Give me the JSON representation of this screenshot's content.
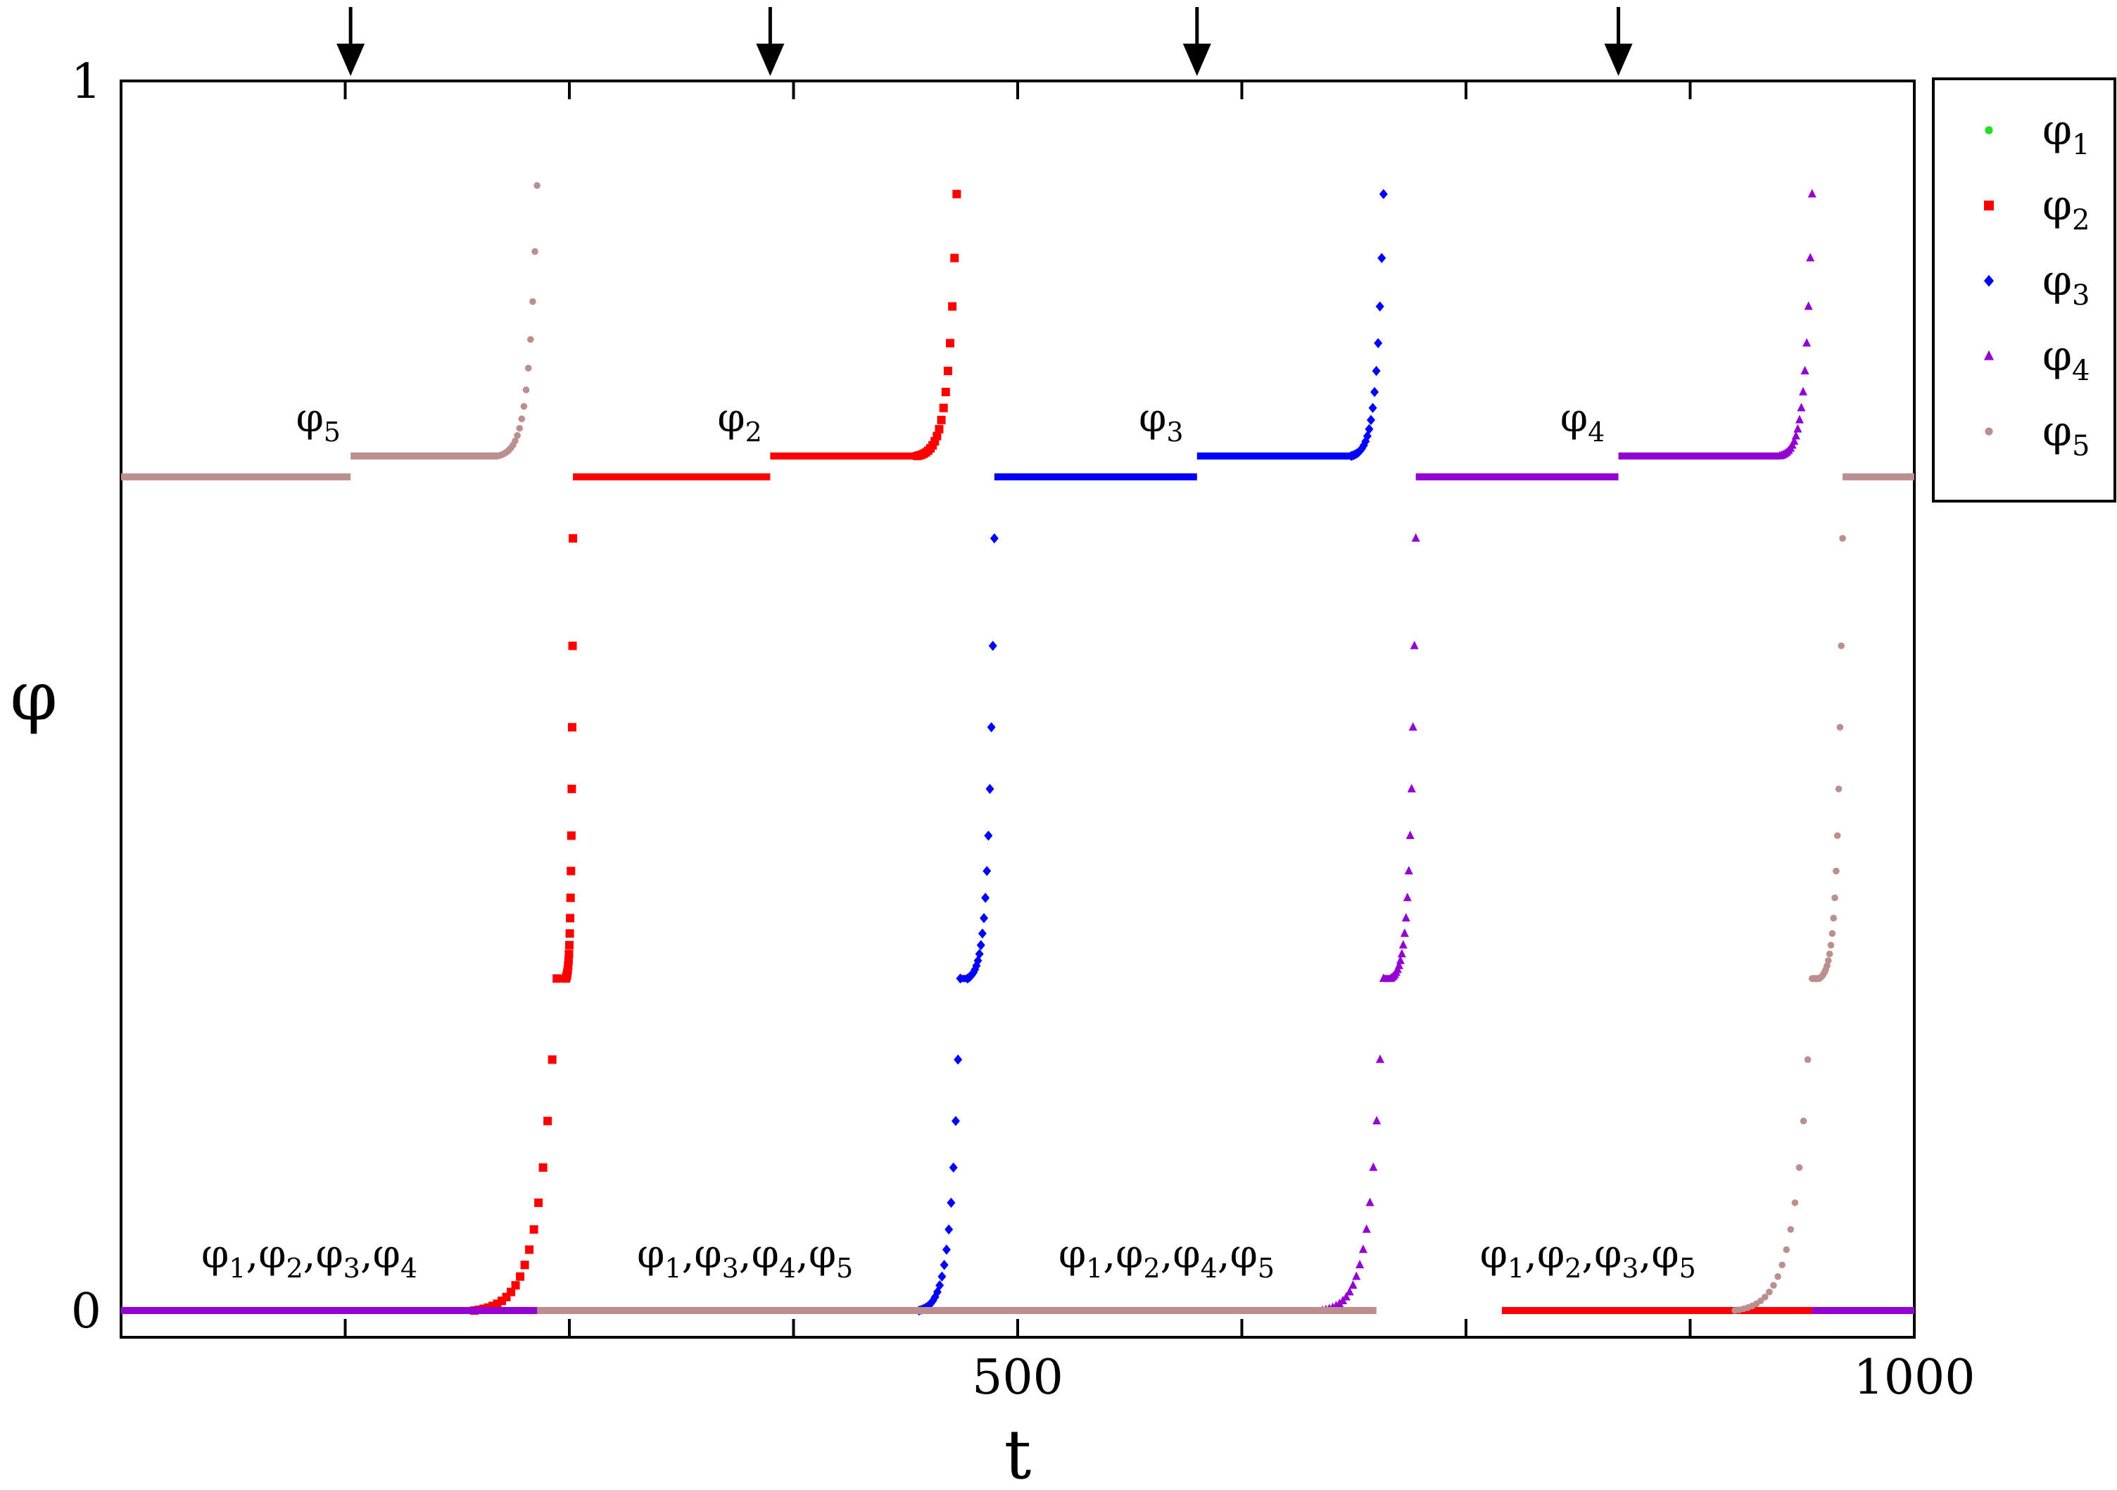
{
  "chart_data": {
    "type": "scatter",
    "xlabel": "t",
    "ylabel": "φ",
    "xlim": [
      0,
      1000
    ],
    "ylim": [
      0,
      1
    ],
    "x_ticks": [
      {
        "value": 500,
        "label": "500"
      },
      {
        "value": 1000,
        "label": "1000"
      }
    ],
    "x_minor_ticks": [
      125,
      250,
      375,
      625,
      750,
      875
    ],
    "y_ticks": [
      {
        "value": 0,
        "label": "0"
      },
      {
        "value": 1,
        "label": "1"
      }
    ],
    "grid": false,
    "legend_position": "outside-right-top",
    "arrows_at_t": [
      128,
      362,
      600,
      835
    ],
    "series": [
      {
        "name": "φ",
        "sub": "1",
        "color": "#22dd22",
        "marker": "circle",
        "segments": []
      },
      {
        "name": "φ",
        "sub": "2",
        "color": "#ff0000",
        "marker": "square",
        "segments": [
          {
            "type": "flat",
            "t": [
              0,
              197
            ],
            "y": 0.0
          },
          {
            "type": "rise",
            "t": [
              197,
              243
            ],
            "y": [
              0.0,
              0.27
            ]
          },
          {
            "type": "flat",
            "t": [
              243,
              248
            ],
            "y": 0.27
          },
          {
            "type": "rise",
            "t": [
              248,
              252
            ],
            "y": [
              0.27,
              0.628
            ]
          },
          {
            "type": "flat",
            "t": [
              252,
              362
            ],
            "y": 0.678
          },
          {
            "type": "flat",
            "t": [
              362,
              444
            ],
            "y": 0.695
          },
          {
            "type": "rise",
            "t": [
              444,
              466
            ],
            "y": [
              0.695,
              0.908
            ]
          },
          {
            "type": "flat",
            "t": [
              560,
              700
            ],
            "y": 0.0
          },
          {
            "type": "flat",
            "t": [
              770,
              1000
            ],
            "y": 0.0
          }
        ]
      },
      {
        "name": "φ",
        "sub": "3",
        "color": "#0000ff",
        "marker": "diamond",
        "segments": [
          {
            "type": "flat",
            "t": [
              0,
              445
            ],
            "y": 0.0
          },
          {
            "type": "rise",
            "t": [
              445,
              468
            ],
            "y": [
              0.0,
              0.27
            ]
          },
          {
            "type": "flat",
            "t": [
              468,
              472
            ],
            "y": 0.27
          },
          {
            "type": "rise",
            "t": [
              472,
              487
            ],
            "y": [
              0.27,
              0.628
            ]
          },
          {
            "type": "flat",
            "t": [
              487,
              600
            ],
            "y": 0.678
          },
          {
            "type": "flat",
            "t": [
              600,
              686
            ],
            "y": 0.695
          },
          {
            "type": "rise",
            "t": [
              686,
              704
            ],
            "y": [
              0.695,
              0.908
            ]
          },
          {
            "type": "flat",
            "t": [
              950,
              1000
            ],
            "y": 0.0
          }
        ]
      },
      {
        "name": "φ",
        "sub": "4",
        "color": "#9400d3",
        "marker": "triangle",
        "segments": [
          {
            "type": "flat",
            "t": [
              0,
              670
            ],
            "y": 0.0
          },
          {
            "type": "rise",
            "t": [
              670,
              704
            ],
            "y": [
              0.0,
              0.27
            ]
          },
          {
            "type": "flat",
            "t": [
              704,
              708
            ],
            "y": 0.27
          },
          {
            "type": "rise",
            "t": [
              708,
              722
            ],
            "y": [
              0.27,
              0.628
            ]
          },
          {
            "type": "flat",
            "t": [
              722,
              835
            ],
            "y": 0.678
          },
          {
            "type": "flat",
            "t": [
              835,
              925
            ],
            "y": 0.695
          },
          {
            "type": "rise",
            "t": [
              925,
              943
            ],
            "y": [
              0.695,
              0.908
            ]
          },
          {
            "type": "flat",
            "t": [
              943,
              1000
            ],
            "y": 0.0
          }
        ]
      },
      {
        "name": "φ",
        "sub": "5",
        "color": "#bc8f8f",
        "marker": "dot",
        "segments": [
          {
            "type": "flat",
            "t": [
              0,
              128
            ],
            "y": 0.678
          },
          {
            "type": "flat",
            "t": [
              128,
              210
            ],
            "y": 0.695
          },
          {
            "type": "rise",
            "t": [
              210,
              232
            ],
            "y": [
              0.695,
              0.915
            ]
          },
          {
            "type": "flat",
            "t": [
              232,
              700
            ],
            "y": 0.0
          },
          {
            "type": "rise",
            "t": [
              900,
              943
            ],
            "y": [
              0.0,
              0.27
            ]
          },
          {
            "type": "flat",
            "t": [
              943,
              947
            ],
            "y": 0.27
          },
          {
            "type": "rise",
            "t": [
              947,
              960
            ],
            "y": [
              0.27,
              0.628
            ]
          },
          {
            "type": "flat",
            "t": [
              960,
              1000
            ],
            "y": 0.678
          }
        ]
      }
    ],
    "annotations": [
      {
        "parts": [
          [
            "φ",
            "5"
          ]
        ],
        "t": 110,
        "y": 0.715
      },
      {
        "parts": [
          [
            "φ",
            "2"
          ]
        ],
        "t": 345,
        "y": 0.715
      },
      {
        "parts": [
          [
            "φ",
            "3"
          ]
        ],
        "t": 580,
        "y": 0.715
      },
      {
        "parts": [
          [
            "φ",
            "4"
          ]
        ],
        "t": 815,
        "y": 0.715
      },
      {
        "parts": [
          [
            "φ",
            "1"
          ],
          [
            "φ",
            "2"
          ],
          [
            "φ",
            "3"
          ],
          [
            "φ",
            "4"
          ]
        ],
        "t": 105,
        "y": 0.035
      },
      {
        "parts": [
          [
            "φ",
            "1"
          ],
          [
            "φ",
            "3"
          ],
          [
            "φ",
            "4"
          ],
          [
            "φ",
            "5"
          ]
        ],
        "t": 348,
        "y": 0.035
      },
      {
        "parts": [
          [
            "φ",
            "1"
          ],
          [
            "φ",
            "2"
          ],
          [
            "φ",
            "4"
          ],
          [
            "φ",
            "5"
          ]
        ],
        "t": 583,
        "y": 0.035
      },
      {
        "parts": [
          [
            "φ",
            "1"
          ],
          [
            "φ",
            "2"
          ],
          [
            "φ",
            "3"
          ],
          [
            "φ",
            "5"
          ]
        ],
        "t": 818,
        "y": 0.035
      }
    ]
  }
}
